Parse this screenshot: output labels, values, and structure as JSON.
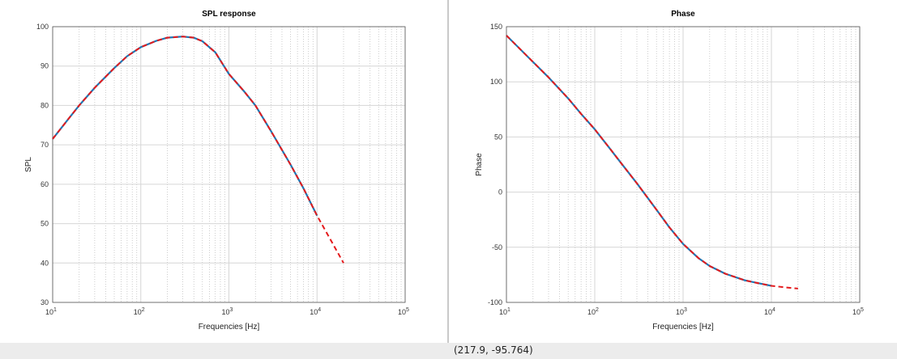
{
  "status": {
    "coordinates": "(217.9, -95.764)"
  },
  "chart_data": [
    {
      "type": "line",
      "title": "SPL response",
      "xlabel": "Frequencies [Hz]",
      "ylabel": "SPL",
      "xscale": "log",
      "xlim": [
        10,
        100000
      ],
      "ylim": [
        30,
        100
      ],
      "xticks": [
        {
          "base": "10",
          "exp": "1"
        },
        {
          "base": "10",
          "exp": "2"
        },
        {
          "base": "10",
          "exp": "3"
        },
        {
          "base": "10",
          "exp": "4"
        },
        {
          "base": "10",
          "exp": "5"
        }
      ],
      "yticks": [
        "30",
        "40",
        "50",
        "60",
        "70",
        "80",
        "90",
        "100"
      ],
      "grid": true,
      "series": [
        {
          "color": "#1f77b4",
          "style": "solid",
          "x": [
            10,
            15,
            20,
            30,
            50,
            70,
            100,
            150,
            200,
            300,
            400,
            500,
            700,
            1000,
            1500,
            2000,
            3000,
            5000,
            7000,
            10000
          ],
          "y": [
            71.5,
            76.5,
            80.0,
            84.5,
            89.5,
            92.5,
            94.8,
            96.4,
            97.2,
            97.5,
            97.2,
            96.3,
            93.5,
            88,
            83.5,
            80,
            73.5,
            65,
            59,
            52
          ]
        },
        {
          "color": "#e41a1c",
          "style": "dashed",
          "x": [
            10,
            15,
            20,
            30,
            50,
            70,
            100,
            150,
            200,
            300,
            400,
            500,
            700,
            1000,
            1500,
            2000,
            3000,
            5000,
            7000,
            10000,
            15000,
            20000
          ],
          "y": [
            71.5,
            76.5,
            80.0,
            84.5,
            89.5,
            92.5,
            94.8,
            96.4,
            97.2,
            97.5,
            97.2,
            96.3,
            93.5,
            88,
            83.5,
            80,
            73.5,
            65,
            59,
            52,
            45,
            40
          ]
        }
      ]
    },
    {
      "type": "line",
      "title": "Phase",
      "xlabel": "Frequencies [Hz]",
      "ylabel": "Phase",
      "xscale": "log",
      "xlim": [
        10,
        100000
      ],
      "ylim": [
        -100,
        150
      ],
      "xticks": [
        {
          "base": "10",
          "exp": "1"
        },
        {
          "base": "10",
          "exp": "2"
        },
        {
          "base": "10",
          "exp": "3"
        },
        {
          "base": "10",
          "exp": "4"
        },
        {
          "base": "10",
          "exp": "5"
        }
      ],
      "yticks": [
        "-100",
        "-50",
        "0",
        "50",
        "100",
        "150"
      ],
      "grid": true,
      "series": [
        {
          "color": "#1f77b4",
          "style": "solid",
          "x": [
            10,
            20,
            30,
            50,
            70,
            100,
            150,
            200,
            300,
            500,
            700,
            1000,
            1500,
            2000,
            3000,
            5000,
            7000,
            10000
          ],
          "y": [
            142,
            118,
            104,
            85,
            71,
            57,
            39,
            26,
            8,
            -16,
            -32,
            -47,
            -60,
            -67,
            -74,
            -80,
            -82.5,
            -85
          ]
        },
        {
          "color": "#e41a1c",
          "style": "dashed",
          "x": [
            10,
            20,
            30,
            50,
            70,
            100,
            150,
            200,
            300,
            500,
            700,
            1000,
            1500,
            2000,
            3000,
            5000,
            7000,
            10000,
            15000,
            20000
          ],
          "y": [
            142,
            118,
            104,
            85,
            71,
            57,
            39,
            26,
            8,
            -16,
            -32,
            -47,
            -60,
            -67,
            -74,
            -80,
            -82.5,
            -85,
            -86.5,
            -87.5
          ]
        }
      ]
    }
  ]
}
